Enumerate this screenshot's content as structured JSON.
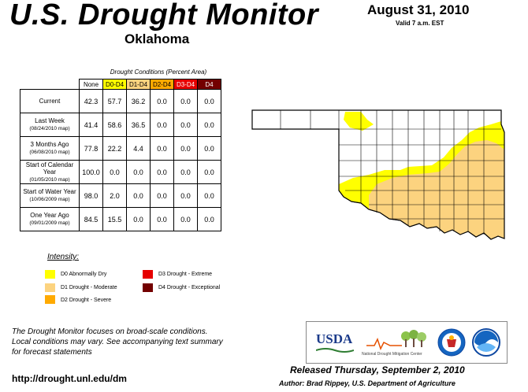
{
  "header": {
    "title": "U.S. Drought Monitor",
    "state": "Oklahoma",
    "date": "August 31, 2010",
    "valid": "Valid 7 a.m. EST"
  },
  "table": {
    "caption": "Drought Conditions (Percent Area)",
    "columns": [
      "None",
      "D0-D4",
      "D1-D4",
      "D2-D4",
      "D3-D4",
      "D4"
    ],
    "rows": [
      {
        "label": "Current",
        "sub": "",
        "values": [
          "42.3",
          "57.7",
          "36.2",
          "0.0",
          "0.0",
          "0.0"
        ]
      },
      {
        "label": "Last Week",
        "sub": "(08/24/2010 map)",
        "values": [
          "41.4",
          "58.6",
          "36.5",
          "0.0",
          "0.0",
          "0.0"
        ]
      },
      {
        "label": "3 Months Ago",
        "sub": "(06/08/2010 map)",
        "values": [
          "77.8",
          "22.2",
          "4.4",
          "0.0",
          "0.0",
          "0.0"
        ]
      },
      {
        "label": "Start of Calendar Year",
        "sub": "(01/05/2010 map)",
        "values": [
          "100.0",
          "0.0",
          "0.0",
          "0.0",
          "0.0",
          "0.0"
        ]
      },
      {
        "label": "Start of Water Year",
        "sub": "(10/06/2009 map)",
        "values": [
          "98.0",
          "2.0",
          "0.0",
          "0.0",
          "0.0",
          "0.0"
        ]
      },
      {
        "label": "One Year Ago",
        "sub": "(09/01/2009 map)",
        "values": [
          "84.5",
          "15.5",
          "0.0",
          "0.0",
          "0.0",
          "0.0"
        ]
      }
    ]
  },
  "legend": {
    "title": "Intensity:",
    "items": [
      {
        "label": "D0 Abnormally Dry",
        "color": "#ffff00"
      },
      {
        "label": "D1 Drought - Moderate",
        "color": "#fcd37f"
      },
      {
        "label": "D2 Drought - Severe",
        "color": "#ffaa00"
      },
      {
        "label": "D3 Drought - Extreme",
        "color": "#e60000"
      },
      {
        "label": "D4 Drought - Exceptional",
        "color": "#730000"
      }
    ]
  },
  "colors": {
    "none": "#ffffff",
    "d0": "#ffff00",
    "d1": "#fcd37f",
    "d2": "#ffaa00",
    "d3": "#e60000",
    "d4": "#730000"
  },
  "map": {
    "description_regions": [
      "panhandle-none",
      "central-none",
      "southwest-d0",
      "southeast-d1",
      "northeast-d0"
    ]
  },
  "footer": {
    "note_line1": "The Drought Monitor focuses on broad-scale conditions.",
    "note_line2": "Local conditions may vary. See accompanying text summary",
    "note_line3": "for forecast statements",
    "url": "http://drought.unl.edu/dm",
    "released": "Released Thursday, September 2, 2010",
    "author": "Author: Brad Rippey, U.S. Department of Agriculture",
    "logo_usda": "USDA",
    "logo_ndmc": "National Drought Mitigation Center"
  }
}
